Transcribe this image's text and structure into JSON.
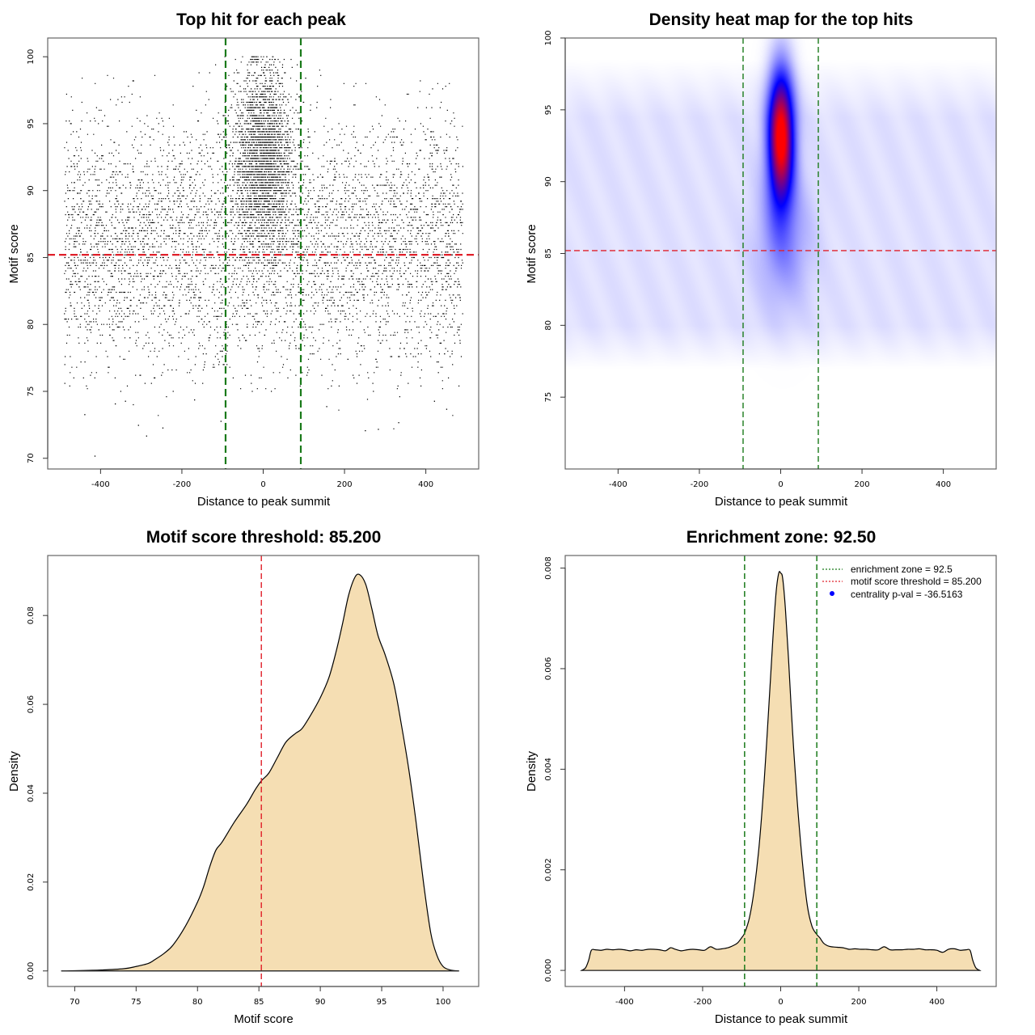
{
  "colors": {
    "green_line": "#1a7a1a",
    "red_line": "#e0202a",
    "density_fill": "#f5deb3",
    "density_stroke": "#000000",
    "scatter_point": "#000000",
    "heat_low": "#ffffff",
    "heat_mid": "#0000ff",
    "heat_high": "#ff0000",
    "legend_dot": "#0000ff"
  },
  "chart_data": [
    {
      "id": "scatter",
      "type": "scatter",
      "title": "Top hit for each peak",
      "xlabel": "Distance to peak summit",
      "ylabel": "Motif score",
      "xlim": [
        -530,
        530
      ],
      "ylim": [
        69.2,
        101.4
      ],
      "xticks": [
        -400,
        -200,
        0,
        200,
        400
      ],
      "xtick_labels": [
        "-400",
        "-200",
        "0",
        "200",
        "400"
      ],
      "yticks": [
        70,
        75,
        80,
        85,
        90,
        95,
        100
      ],
      "ytick_labels": [
        "70",
        "75",
        "80",
        "85",
        "90",
        "95",
        "100"
      ],
      "vlines": [
        -92.5,
        92.5
      ],
      "hline": 85.2,
      "description": "Dense cloud of points spanning x -490 to 490 and scores ~76 to 99, with a concentrated cluster centered at x=0 between scores ~83 and ~100",
      "distribution": {
        "background_x_range": [
          -490,
          490
        ],
        "background_score_range": [
          75,
          99
        ],
        "cluster_center_x": 0,
        "cluster_sd_x": 35,
        "cluster_center_score": 92.5,
        "cluster_score_range": [
          83,
          100
        ]
      },
      "outliers": [
        [
          -415,
          70.2
        ],
        [
          -288,
          71.7
        ],
        [
          -308,
          72.5
        ],
        [
          -248,
          72.3
        ],
        [
          -440,
          73.3
        ],
        [
          -365,
          74.1
        ],
        [
          -340,
          74.3
        ],
        [
          250,
          72.1
        ],
        [
          282,
          72.2
        ],
        [
          332,
          72.7
        ],
        [
          -105,
          72.8
        ],
        [
          420,
          74.3
        ],
        [
          450,
          73.7
        ],
        [
          -170,
          74.4
        ],
        [
          155,
          73.9
        ]
      ]
    },
    {
      "id": "heatmap",
      "type": "heatmap",
      "title": "Density heat map for the top hits",
      "xlabel": "Distance to peak summit",
      "ylabel": "Motif score",
      "xlim": [
        -530,
        530
      ],
      "ylim": [
        70,
        100
      ],
      "xticks": [
        -400,
        -200,
        0,
        200,
        400
      ],
      "xtick_labels": [
        "-400",
        "-200",
        "0",
        "200",
        "400"
      ],
      "yticks": [
        75,
        80,
        85,
        90,
        95,
        100
      ],
      "ytick_labels": [
        "75",
        "80",
        "85",
        "90",
        "95",
        "100"
      ],
      "vlines": [
        -92.5,
        92.5
      ],
      "hline": 85.2,
      "hotspot": {
        "x": 0,
        "y": 93.2,
        "sd_x": 22,
        "sd_y": 3.2
      },
      "background": {
        "x_range": [
          -530,
          530
        ],
        "score_range": [
          77,
          98
        ]
      },
      "colormap": [
        "white",
        "blue",
        "red"
      ]
    },
    {
      "id": "score_density",
      "type": "area",
      "title": "Motif score threshold: 85.200",
      "xlabel": "Motif score",
      "ylabel": "Density",
      "xlim": [
        67.8,
        102.9
      ],
      "ylim": [
        -0.0035,
        0.0935
      ],
      "xticks": [
        70,
        75,
        80,
        85,
        90,
        95,
        100
      ],
      "xtick_labels": [
        "70",
        "75",
        "80",
        "85",
        "90",
        "95",
        "100"
      ],
      "yticks": [
        0.0,
        0.02,
        0.04,
        0.06,
        0.08
      ],
      "ytick_labels": [
        "0.00",
        "0.02",
        "0.04",
        "0.06",
        "0.08"
      ],
      "vline": 85.2,
      "x": [
        68.9,
        72,
        74,
        75,
        76,
        76.5,
        77.3,
        78,
        79,
        80,
        80.5,
        81,
        81.5,
        82,
        83,
        84,
        84.7,
        85.2,
        85.8,
        86.5,
        87.2,
        88,
        88.5,
        89.2,
        90,
        90.7,
        91.3,
        91.8,
        92.3,
        92.8,
        93.2,
        93.7,
        94.2,
        94.7,
        95.3,
        96,
        96.6,
        97.2,
        97.8,
        98.4,
        99,
        99.5,
        100,
        100.6,
        101.3
      ],
      "y": [
        0.0,
        0.0002,
        0.0005,
        0.001,
        0.0017,
        0.0025,
        0.004,
        0.0058,
        0.01,
        0.0155,
        0.019,
        0.0235,
        0.0272,
        0.029,
        0.0335,
        0.0375,
        0.0408,
        0.0428,
        0.0445,
        0.048,
        0.0515,
        0.0535,
        0.0545,
        0.0575,
        0.0615,
        0.066,
        0.072,
        0.078,
        0.0845,
        0.0885,
        0.0892,
        0.087,
        0.0815,
        0.0755,
        0.071,
        0.0645,
        0.0555,
        0.0455,
        0.0335,
        0.02,
        0.0085,
        0.0035,
        0.001,
        0.0002,
        0.0
      ]
    },
    {
      "id": "position_density",
      "type": "area",
      "title": "Enrichment zone: 92.50",
      "xlabel": "Distance to peak summit",
      "ylabel": "Density",
      "xlim": [
        -552,
        552
      ],
      "ylim": [
        -0.00032,
        0.00825
      ],
      "xticks": [
        -400,
        -200,
        0,
        200,
        400
      ],
      "xtick_labels": [
        "-400",
        "-200",
        "0",
        "200",
        "400"
      ],
      "yticks": [
        0.0,
        0.002,
        0.004,
        0.006,
        0.008
      ],
      "ytick_labels": [
        "0.000",
        "0.002",
        "0.004",
        "0.006",
        "0.008"
      ],
      "vlines": [
        -92.5,
        92.5
      ],
      "x": [
        -510,
        -500,
        -492,
        -485,
        -475,
        -460,
        -445,
        -430,
        -415,
        -400,
        -385,
        -370,
        -355,
        -340,
        -325,
        -310,
        -295,
        -282,
        -270,
        -255,
        -240,
        -225,
        -210,
        -195,
        -180,
        -165,
        -150,
        -135,
        -120,
        -110,
        -100,
        -92,
        -80,
        -68,
        -55,
        -42,
        -30,
        -20,
        -12,
        -5,
        0,
        5,
        12,
        20,
        30,
        42,
        55,
        68,
        80,
        92,
        100,
        110,
        120,
        130,
        145,
        160,
        175,
        190,
        205,
        220,
        235,
        250,
        265,
        280,
        295,
        310,
        325,
        340,
        355,
        370,
        385,
        400,
        415,
        430,
        445,
        460,
        475,
        485,
        492,
        500,
        510
      ],
      "y": [
        0.0,
        5e-05,
        0.0002,
        0.0004,
        0.00041,
        0.0004,
        0.00042,
        0.00041,
        0.00042,
        0.00041,
        0.00039,
        0.00041,
        0.0004,
        0.00042,
        0.00042,
        0.00041,
        0.00039,
        0.00045,
        0.00042,
        0.00039,
        0.00041,
        0.00042,
        0.00041,
        0.0004,
        0.00047,
        0.00042,
        0.00043,
        0.00045,
        0.0005,
        0.00055,
        0.00065,
        0.00075,
        0.00105,
        0.0016,
        0.0025,
        0.0038,
        0.0053,
        0.0066,
        0.0075,
        0.0079,
        0.0079,
        0.0078,
        0.0072,
        0.0062,
        0.0048,
        0.0034,
        0.0022,
        0.0013,
        0.00088,
        0.00072,
        0.00065,
        0.00054,
        0.00049,
        0.00047,
        0.00046,
        0.00045,
        0.00042,
        0.00043,
        0.00042,
        0.00042,
        0.00041,
        0.00041,
        0.00047,
        0.00041,
        0.00041,
        0.00041,
        0.00042,
        0.00042,
        0.00043,
        0.00041,
        0.00041,
        0.0004,
        0.00036,
        0.00042,
        0.00043,
        0.0004,
        0.00041,
        0.0004,
        0.0002,
        5e-05,
        0.0
      ],
      "legend": {
        "position": "top-right",
        "items": [
          {
            "label": "enrichment zone = 92.5",
            "symbol": "dotted-line",
            "color": "#1a7a1a"
          },
          {
            "label": "motif score threshold = 85.200",
            "symbol": "dotted-line",
            "color": "#e0202a"
          },
          {
            "label": "centrality p-val = -36.5163",
            "symbol": "dot",
            "color": "#0000ff"
          }
        ]
      }
    }
  ]
}
